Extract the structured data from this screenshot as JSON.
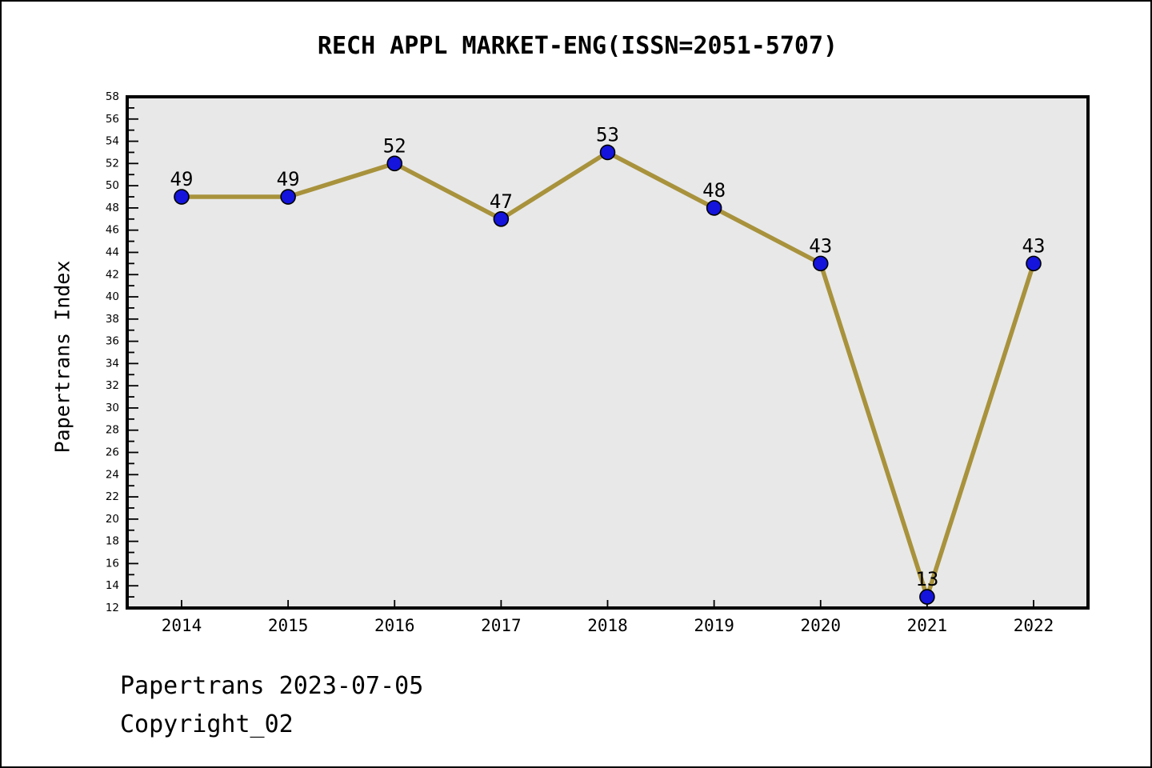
{
  "title": "RECH APPL MARKET-ENG(ISSN=2051-5707)",
  "footer": {
    "line1": "Papertrans 2023-07-05",
    "line2": "Copyright_02"
  },
  "chart_data": {
    "type": "line",
    "title": "RECH APPL MARKET-ENG(ISSN=2051-5707)",
    "categories": [
      "2014",
      "2015",
      "2016",
      "2017",
      "2018",
      "2019",
      "2020",
      "2021",
      "2022"
    ],
    "values": [
      49,
      49,
      52,
      47,
      53,
      48,
      43,
      13,
      43
    ],
    "xlabel": "",
    "ylabel": "Papertrans Index",
    "ylim": [
      12,
      58
    ],
    "ytick_step": 2,
    "yminor_step": 1,
    "grid": false,
    "legend_position": "none",
    "point_labels_visible": true,
    "colors": {
      "line": "#a8923c",
      "marker_fill": "#1414dd",
      "marker_edge": "#000000",
      "plot_background": "#e8e8e8",
      "page_background": "#ffffff",
      "frame": "#000000",
      "text": "#000000"
    }
  }
}
